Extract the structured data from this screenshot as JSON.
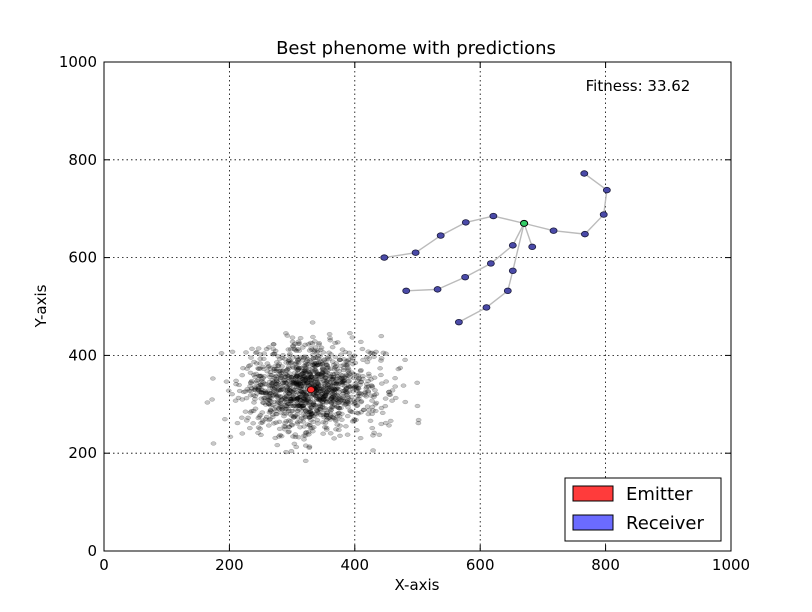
{
  "chart_data": {
    "type": "scatter",
    "title": "Best phenome with predictions",
    "xlabel": "X-axis",
    "ylabel": "Y-axis",
    "xlim": [
      0,
      1000
    ],
    "ylim": [
      0,
      1000
    ],
    "xticks": [
      "0",
      "200",
      "400",
      "600",
      "800",
      "1000"
    ],
    "yticks": [
      "0",
      "200",
      "400",
      "600",
      "800",
      "1000"
    ],
    "grid": true,
    "legend_position": "bottom-right",
    "annotation": "Fitness: 33.62",
    "legend": [
      {
        "label": "Emitter",
        "color": "#ff3b3b"
      },
      {
        "label": "Receiver",
        "color": "#6b6bff"
      }
    ],
    "colors": {
      "prediction_cloud": "#000000",
      "emitter": "#ff2a2a",
      "receiver": "#4a4aa8",
      "hub": "#33cc66",
      "link": "#bbbbbb"
    },
    "emitter": {
      "x": 330,
      "y": 330
    },
    "prediction_cloud": {
      "center": {
        "x": 330,
        "y": 330
      },
      "spread": {
        "x": 55,
        "y": 45
      },
      "count": 1300,
      "seed": 7
    },
    "hub": {
      "x": 670,
      "y": 670
    },
    "receivers": [
      {
        "x": 447,
        "y": 600
      },
      {
        "x": 497,
        "y": 610
      },
      {
        "x": 537,
        "y": 645
      },
      {
        "x": 577,
        "y": 672
      },
      {
        "x": 621,
        "y": 685
      },
      {
        "x": 717,
        "y": 655
      },
      {
        "x": 767,
        "y": 648
      },
      {
        "x": 797,
        "y": 688
      },
      {
        "x": 802,
        "y": 738
      },
      {
        "x": 766,
        "y": 772
      },
      {
        "x": 683,
        "y": 622
      },
      {
        "x": 652,
        "y": 573
      },
      {
        "x": 644,
        "y": 532
      },
      {
        "x": 610,
        "y": 498
      },
      {
        "x": 566,
        "y": 468
      },
      {
        "x": 652,
        "y": 625
      },
      {
        "x": 617,
        "y": 588
      },
      {
        "x": 576,
        "y": 560
      },
      {
        "x": 532,
        "y": 535
      },
      {
        "x": 482,
        "y": 532
      }
    ],
    "links": [
      [
        0,
        1
      ],
      [
        1,
        2
      ],
      [
        2,
        3
      ],
      [
        3,
        4
      ],
      [
        4,
        "hub"
      ],
      [
        "hub",
        5
      ],
      [
        5,
        6
      ],
      [
        6,
        7
      ],
      [
        7,
        8
      ],
      [
        8,
        9
      ],
      [
        "hub",
        10
      ],
      [
        "hub",
        11
      ],
      [
        11,
        12
      ],
      [
        12,
        13
      ],
      [
        13,
        14
      ],
      [
        "hub",
        15
      ],
      [
        15,
        16
      ],
      [
        16,
        17
      ],
      [
        17,
        18
      ],
      [
        18,
        19
      ]
    ]
  }
}
